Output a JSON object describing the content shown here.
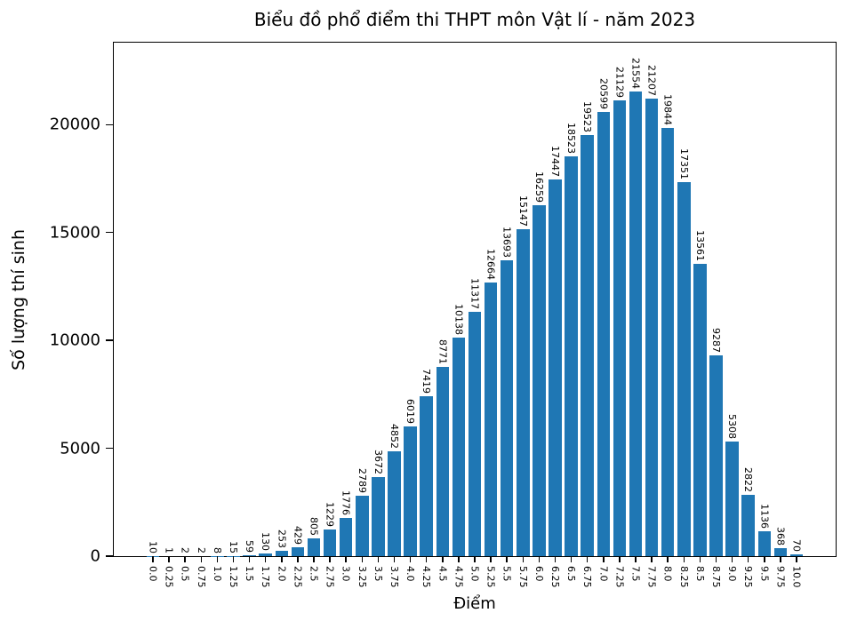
{
  "chart_data": {
    "type": "bar",
    "title": "Biểu đồ phổ điểm thi THPT môn Vật lí - năm 2023",
    "xlabel": "Điểm",
    "ylabel": "Số lượng thí sinh",
    "categories": [
      "0.0",
      "0.25",
      "0.5",
      "0.75",
      "1.0",
      "1.25",
      "1.5",
      "1.75",
      "2.0",
      "2.25",
      "2.5",
      "2.75",
      "3.0",
      "3.25",
      "3.5",
      "3.75",
      "4.0",
      "4.25",
      "4.5",
      "4.75",
      "5.0",
      "5.25",
      "5.5",
      "5.75",
      "6.0",
      "6.25",
      "6.5",
      "6.75",
      "7.0",
      "7.25",
      "7.5",
      "7.75",
      "8.0",
      "8.25",
      "8.5",
      "8.75",
      "9.0",
      "9.25",
      "9.5",
      "9.75",
      "10.0"
    ],
    "values": [
      10,
      1,
      2,
      2,
      8,
      15,
      59,
      130,
      253,
      429,
      805,
      1229,
      1776,
      2789,
      3672,
      4852,
      6019,
      7419,
      8771,
      10138,
      11317,
      12664,
      13693,
      15147,
      16259,
      17447,
      18523,
      19523,
      20599,
      21129,
      21554,
      21207,
      19844,
      17351,
      13561,
      9287,
      5308,
      2822,
      1136,
      368,
      70
    ],
    "yticks": [
      0,
      5000,
      10000,
      15000,
      20000
    ],
    "ylim": [
      0,
      23800
    ],
    "bar_color": "#1f77b4",
    "axis_color": "#000000",
    "bar_labels": true,
    "grid": false,
    "legend": null,
    "xtick_rotation": 90,
    "bar_label_rotation": 90
  }
}
